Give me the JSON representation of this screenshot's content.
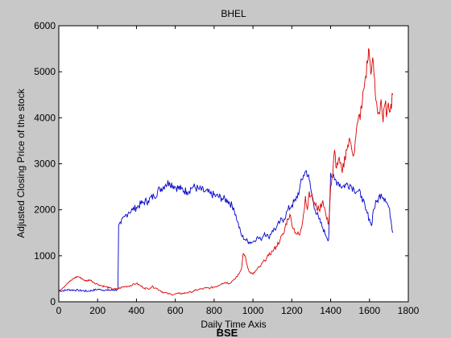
{
  "chart_data": {
    "type": "line",
    "title": "BHEL",
    "xlabel": "Daily Time Axis",
    "ylabel": "Adjusted Closing Price of the stock",
    "caption": "BSE",
    "xlim": [
      0,
      1800
    ],
    "ylim": [
      0,
      6000
    ],
    "xticks": [
      0,
      200,
      400,
      600,
      800,
      1000,
      1200,
      1400,
      1600,
      1800
    ],
    "yticks": [
      0,
      1000,
      2000,
      3000,
      4000,
      5000,
      6000
    ],
    "grid": false,
    "series": [
      {
        "color": "#0000cc",
        "points": [
          [
            0,
            230
          ],
          [
            50,
            260
          ],
          [
            100,
            250
          ],
          [
            150,
            230
          ],
          [
            200,
            270
          ],
          [
            250,
            250
          ],
          [
            300,
            260
          ],
          [
            305,
            320
          ],
          [
            308,
            1650
          ],
          [
            320,
            1700
          ],
          [
            340,
            1850
          ],
          [
            360,
            1950
          ],
          [
            380,
            2000
          ],
          [
            400,
            2050
          ],
          [
            430,
            2150
          ],
          [
            460,
            2200
          ],
          [
            490,
            2300
          ],
          [
            520,
            2450
          ],
          [
            550,
            2550
          ],
          [
            570,
            2600
          ],
          [
            600,
            2500
          ],
          [
            630,
            2450
          ],
          [
            660,
            2400
          ],
          [
            690,
            2500
          ],
          [
            720,
            2450
          ],
          [
            750,
            2400
          ],
          [
            780,
            2350
          ],
          [
            810,
            2300
          ],
          [
            840,
            2250
          ],
          [
            870,
            2200
          ],
          [
            900,
            2050
          ],
          [
            920,
            1750
          ],
          [
            940,
            1450
          ],
          [
            960,
            1350
          ],
          [
            980,
            1300
          ],
          [
            1000,
            1300
          ],
          [
            1020,
            1400
          ],
          [
            1040,
            1350
          ],
          [
            1060,
            1500
          ],
          [
            1080,
            1400
          ],
          [
            1100,
            1550
          ],
          [
            1120,
            1600
          ],
          [
            1140,
            1750
          ],
          [
            1160,
            1800
          ],
          [
            1180,
            2000
          ],
          [
            1200,
            2100
          ],
          [
            1220,
            2200
          ],
          [
            1240,
            2450
          ],
          [
            1260,
            2750
          ],
          [
            1275,
            2850
          ],
          [
            1290,
            2650
          ],
          [
            1300,
            2400
          ],
          [
            1320,
            2000
          ],
          [
            1340,
            1800
          ],
          [
            1360,
            1600
          ],
          [
            1375,
            1450
          ],
          [
            1390,
            1350
          ],
          [
            1400,
            2800
          ],
          [
            1410,
            2700
          ],
          [
            1420,
            2650
          ],
          [
            1440,
            2600
          ],
          [
            1460,
            2500
          ],
          [
            1480,
            2550
          ],
          [
            1500,
            2550
          ],
          [
            1520,
            2450
          ],
          [
            1540,
            2400
          ],
          [
            1560,
            2300
          ],
          [
            1580,
            2000
          ],
          [
            1600,
            1800
          ],
          [
            1610,
            1650
          ],
          [
            1620,
            2000
          ],
          [
            1640,
            2200
          ],
          [
            1660,
            2350
          ],
          [
            1680,
            2250
          ],
          [
            1700,
            2050
          ],
          [
            1710,
            1800
          ],
          [
            1720,
            1500
          ]
        ]
      },
      {
        "color": "#dd0000",
        "points": [
          [
            0,
            250
          ],
          [
            20,
            300
          ],
          [
            40,
            380
          ],
          [
            60,
            450
          ],
          [
            80,
            520
          ],
          [
            100,
            550
          ],
          [
            120,
            500
          ],
          [
            140,
            450
          ],
          [
            160,
            480
          ],
          [
            180,
            420
          ],
          [
            200,
            380
          ],
          [
            220,
            350
          ],
          [
            240,
            330
          ],
          [
            260,
            300
          ],
          [
            280,
            280
          ],
          [
            300,
            270
          ],
          [
            320,
            310
          ],
          [
            340,
            330
          ],
          [
            360,
            340
          ],
          [
            380,
            370
          ],
          [
            400,
            400
          ],
          [
            420,
            350
          ],
          [
            440,
            300
          ],
          [
            460,
            280
          ],
          [
            480,
            330
          ],
          [
            500,
            300
          ],
          [
            520,
            250
          ],
          [
            540,
            200
          ],
          [
            560,
            180
          ],
          [
            580,
            160
          ],
          [
            600,
            170
          ],
          [
            620,
            180
          ],
          [
            640,
            180
          ],
          [
            660,
            200
          ],
          [
            680,
            210
          ],
          [
            700,
            240
          ],
          [
            720,
            270
          ],
          [
            740,
            280
          ],
          [
            760,
            300
          ],
          [
            780,
            300
          ],
          [
            800,
            320
          ],
          [
            820,
            350
          ],
          [
            840,
            400
          ],
          [
            860,
            420
          ],
          [
            880,
            400
          ],
          [
            900,
            480
          ],
          [
            920,
            550
          ],
          [
            940,
            700
          ],
          [
            950,
            1050
          ],
          [
            960,
            1000
          ],
          [
            970,
            800
          ],
          [
            980,
            650
          ],
          [
            1000,
            600
          ],
          [
            1020,
            700
          ],
          [
            1040,
            780
          ],
          [
            1060,
            900
          ],
          [
            1080,
            1000
          ],
          [
            1100,
            1100
          ],
          [
            1120,
            1200
          ],
          [
            1140,
            1350
          ],
          [
            1160,
            1500
          ],
          [
            1170,
            1700
          ],
          [
            1180,
            1800
          ],
          [
            1190,
            1900
          ],
          [
            1200,
            1700
          ],
          [
            1220,
            1500
          ],
          [
            1240,
            1450
          ],
          [
            1250,
            1600
          ],
          [
            1260,
            1900
          ],
          [
            1270,
            2300
          ],
          [
            1280,
            2000
          ],
          [
            1290,
            2400
          ],
          [
            1300,
            2300
          ],
          [
            1320,
            2100
          ],
          [
            1340,
            2000
          ],
          [
            1360,
            2200
          ],
          [
            1380,
            1800
          ],
          [
            1390,
            1700
          ],
          [
            1400,
            2500
          ],
          [
            1410,
            2700
          ],
          [
            1420,
            3300
          ],
          [
            1430,
            2900
          ],
          [
            1440,
            3100
          ],
          [
            1460,
            2800
          ],
          [
            1480,
            3300
          ],
          [
            1500,
            3500
          ],
          [
            1520,
            3200
          ],
          [
            1530,
            3600
          ],
          [
            1540,
            3900
          ],
          [
            1560,
            4200
          ],
          [
            1570,
            4600
          ],
          [
            1580,
            4900
          ],
          [
            1590,
            5200
          ],
          [
            1595,
            5500
          ],
          [
            1600,
            5300
          ],
          [
            1610,
            5000
          ],
          [
            1620,
            5200
          ],
          [
            1630,
            4500
          ],
          [
            1640,
            4200
          ],
          [
            1650,
            4100
          ],
          [
            1660,
            4400
          ],
          [
            1670,
            3900
          ],
          [
            1680,
            4300
          ],
          [
            1690,
            4100
          ],
          [
            1700,
            4200
          ],
          [
            1710,
            4300
          ],
          [
            1720,
            4500
          ]
        ]
      }
    ]
  }
}
